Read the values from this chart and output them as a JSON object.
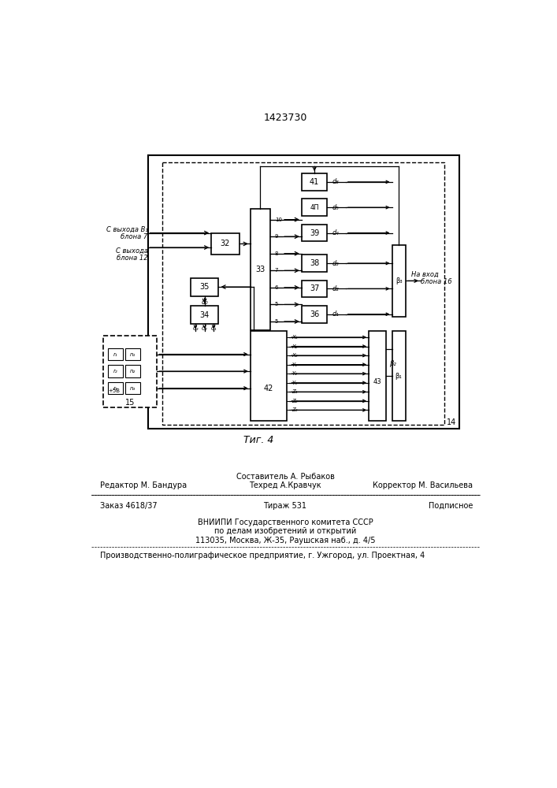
{
  "title": "1423730",
  "fig_label": "Τиг. 4",
  "bg_color": "#ffffff",
  "footer": {
    "line1_left": "Редактор М. Бандура",
    "line1_center": "Составитель А. Рыбаков",
    "line1_center2": "Техред А.Кравчук",
    "line1_right": "Корректор М. Васильева",
    "line2_left": "Заказ 4618/37",
    "line2_center": "Тираж 531",
    "line2_right": "Подписное",
    "line3": "ВНИИПИ Государственного комитета СССР",
    "line4": "по делам изобретений и открытий",
    "line5": "113035, Москва, Ж-35, Раушская наб., д. 4/5",
    "line6": "Производственно-полиграфическое предприятие, г. Ужгород, ул. Проектная, 4"
  }
}
